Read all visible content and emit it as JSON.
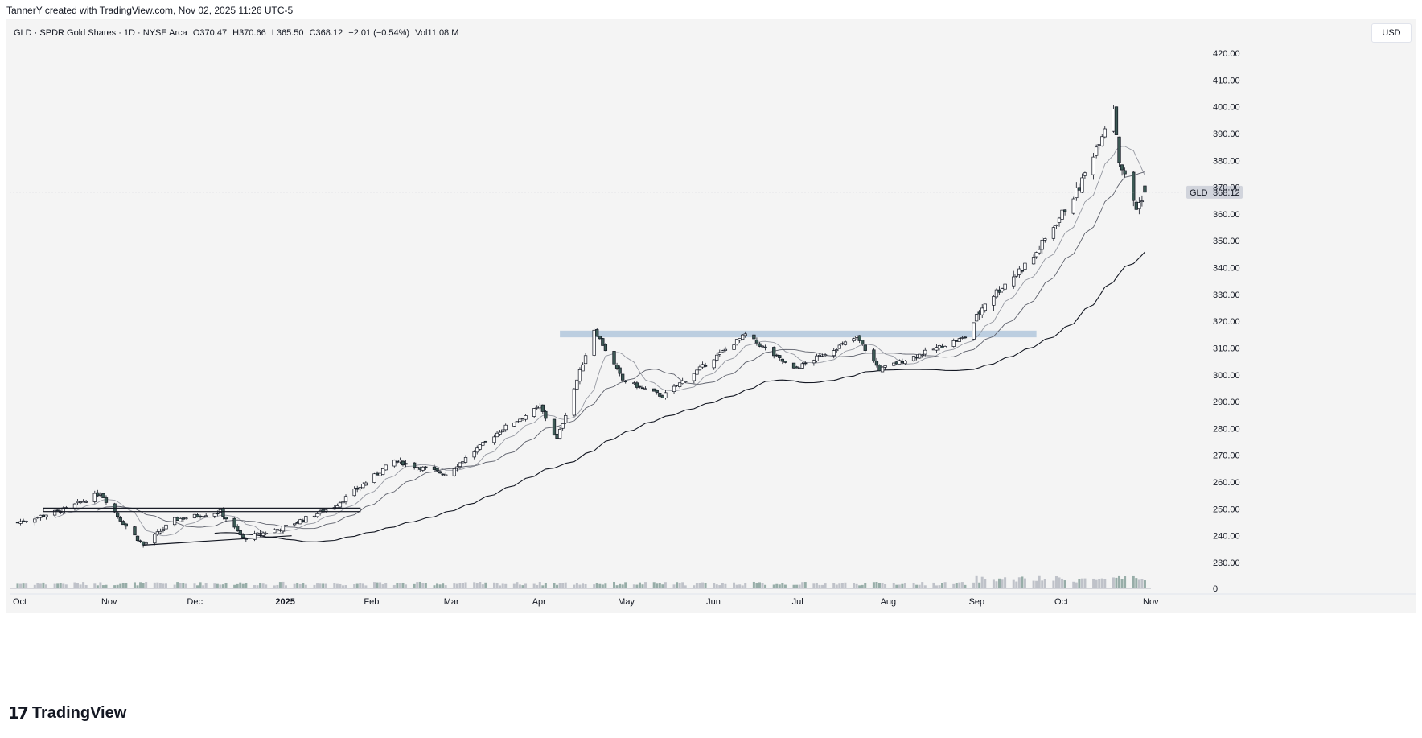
{
  "header": {
    "attribution": "TannerY created with TradingView.com, Nov 02, 2025 11:26 UTC-5"
  },
  "symbol_info": {
    "name": "GLD · SPDR Gold Shares · 1D · NYSE Arca",
    "open": "O370.47",
    "high": "H370.66",
    "low": "L365.50",
    "close": "C368.12",
    "change": "−2.01 (−0.54%)",
    "volume": "Vol11.08 M"
  },
  "currency": "USD",
  "last_price_tag": {
    "ticker": "GLD",
    "value": "368.12"
  },
  "volume_axis_label": "0",
  "brand": {
    "name": "TradingView",
    "mark": "17"
  },
  "colors": {
    "up": "#ffffff",
    "down": "#3d5a55",
    "outline": "#131722",
    "sma_fast": "#9598a1",
    "sma_mid": "#5d606b",
    "sma_slow": "#131722",
    "zone": "#b2c7dc"
  },
  "chart_data": {
    "type": "candlestick",
    "title": "GLD · SPDR Gold Shares · 1D · NYSE Arca",
    "ylim": [
      227,
      428
    ],
    "y_ticks": [
      420,
      410,
      400,
      390,
      380,
      370,
      360,
      350,
      340,
      330,
      320,
      310,
      300,
      290,
      280,
      270,
      260,
      250,
      240,
      230
    ],
    "y_tick_labels": [
      "420.00",
      "410.00",
      "400.00",
      "390.00",
      "380.00",
      "370.00",
      "360.00",
      "350.00",
      "340.00",
      "330.00",
      "320.00",
      "310.00",
      "300.00",
      "290.00",
      "280.00",
      "270.00",
      "260.00",
      "250.00",
      "240.00",
      "230.00"
    ],
    "x_range": [
      "2024-10-01",
      "2025-11-01"
    ],
    "x_ticks": [
      {
        "date": "2024-10-01",
        "label": "Oct"
      },
      {
        "date": "2024-11-01",
        "label": "Nov"
      },
      {
        "date": "2024-12-01",
        "label": "Dec"
      },
      {
        "date": "2025-01-01",
        "label": "2025"
      },
      {
        "date": "2025-02-01",
        "label": "Feb"
      },
      {
        "date": "2025-03-01",
        "label": "Mar"
      },
      {
        "date": "2025-04-01",
        "label": "Apr"
      },
      {
        "date": "2025-05-01",
        "label": "May"
      },
      {
        "date": "2025-06-01",
        "label": "Jun"
      },
      {
        "date": "2025-07-01",
        "label": "Jul"
      },
      {
        "date": "2025-08-01",
        "label": "Aug"
      },
      {
        "date": "2025-09-01",
        "label": "Sep"
      },
      {
        "date": "2025-10-01",
        "label": "Oct"
      },
      {
        "date": "2025-11-01",
        "label": "Nov"
      }
    ],
    "price_key_points": [
      {
        "date": "2024-10-01",
        "close": 245
      },
      {
        "date": "2024-10-18",
        "close": 250
      },
      {
        "date": "2024-10-30",
        "close": 256
      },
      {
        "date": "2024-11-06",
        "close": 246
      },
      {
        "date": "2024-11-14",
        "close": 236.5
      },
      {
        "date": "2024-11-25",
        "close": 246
      },
      {
        "date": "2024-12-11",
        "close": 249
      },
      {
        "date": "2024-12-19",
        "close": 239
      },
      {
        "date": "2025-01-02",
        "close": 243
      },
      {
        "date": "2025-01-20",
        "close": 251
      },
      {
        "date": "2025-02-10",
        "close": 268
      },
      {
        "date": "2025-02-28",
        "close": 263
      },
      {
        "date": "2025-03-20",
        "close": 280
      },
      {
        "date": "2025-04-02",
        "close": 288
      },
      {
        "date": "2025-04-08",
        "close": 276
      },
      {
        "date": "2025-04-21",
        "close": 317
      },
      {
        "date": "2025-05-01",
        "close": 298
      },
      {
        "date": "2025-05-15",
        "close": 292
      },
      {
        "date": "2025-06-13",
        "close": 315
      },
      {
        "date": "2025-06-30",
        "close": 302
      },
      {
        "date": "2025-07-22",
        "close": 314
      },
      {
        "date": "2025-07-30",
        "close": 302
      },
      {
        "date": "2025-08-29",
        "close": 314
      },
      {
        "date": "2025-09-05",
        "close": 327
      },
      {
        "date": "2025-09-22",
        "close": 344
      },
      {
        "date": "2025-10-08",
        "close": 370
      },
      {
        "date": "2025-10-20",
        "close": 400
      },
      {
        "date": "2025-10-22",
        "close": 380
      },
      {
        "date": "2025-10-28",
        "close": 362
      },
      {
        "date": "2025-10-31",
        "close": 368.12
      }
    ],
    "moving_averages": [
      {
        "name": "sma_10",
        "style": "thin-light"
      },
      {
        "name": "sma_21",
        "style": "thin-medium"
      },
      {
        "name": "sma_50",
        "style": "dark"
      }
    ],
    "annotations": [
      {
        "type": "resistance_box",
        "from": "2024-10-10",
        "to": "2025-01-29",
        "y_top": 250.3,
        "y_bottom": 249.0
      },
      {
        "type": "support_line",
        "from": "2024-11-14",
        "to": "2025-01-05",
        "y_start": 236.5,
        "y_end": 240
      },
      {
        "type": "resistance_zone",
        "from": "2025-04-09",
        "to": "2025-09-23",
        "y_top": 316.5,
        "y_bottom": 314.0
      }
    ],
    "volume": {
      "ylim": [
        0,
        25
      ],
      "last": 11.08,
      "unit": "M"
    },
    "grid": false,
    "legend": "none"
  }
}
